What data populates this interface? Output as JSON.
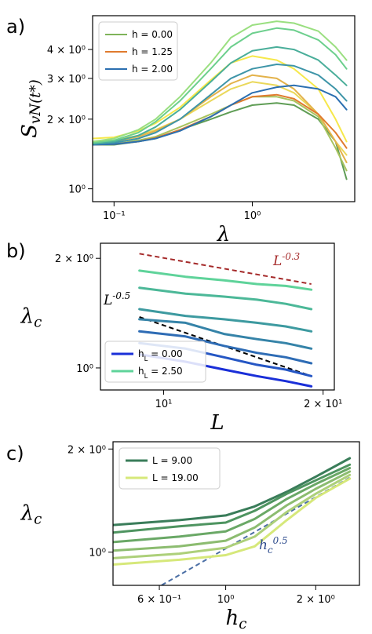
{
  "chart_data": [
    {
      "type": "line",
      "panel_label": "a)",
      "xlabel": "λ",
      "ylabel": "S_vN(t*)",
      "xscale": "log",
      "yscale": "log",
      "xlim": [
        0.07,
        5.5
      ],
      "ylim": [
        0.88,
        5.6
      ],
      "xticks": [
        {
          "value": 0.1,
          "label": "10⁻¹"
        },
        {
          "value": 1,
          "label": "10⁰"
        }
      ],
      "yticks": [
        {
          "value": 1,
          "label": "10⁰"
        },
        {
          "value": 2,
          "label": "2 × 10⁰"
        },
        {
          "value": 3,
          "label": "3 × 10⁰"
        },
        {
          "value": 4,
          "label": "4 × 10⁰"
        }
      ],
      "legend_position": "top-left",
      "legend": [
        {
          "label": "h = 0.00",
          "color": "#7fb35a"
        },
        {
          "label": "h = 1.25",
          "color": "#e07b2e"
        },
        {
          "label": "h = 2.00",
          "color": "#2b6fb0"
        }
      ],
      "x": [
        0.07,
        0.1,
        0.15,
        0.2,
        0.3,
        0.5,
        0.7,
        1.0,
        1.5,
        2.0,
        3.0,
        4.0,
        4.8
      ],
      "series": [
        {
          "color": "#5f9d55",
          "values": [
            1.55,
            1.55,
            1.6,
            1.65,
            1.8,
            2.0,
            2.15,
            2.3,
            2.35,
            2.3,
            2.0,
            1.6,
            1.1
          ]
        },
        {
          "color": "#a8c35e",
          "values": [
            1.55,
            1.56,
            1.62,
            1.68,
            1.85,
            2.1,
            2.3,
            2.5,
            2.5,
            2.4,
            2.05,
            1.5,
            1.2
          ]
        },
        {
          "color": "#ead85a",
          "values": [
            1.6,
            1.62,
            1.7,
            1.8,
            2.0,
            2.4,
            2.7,
            2.9,
            2.8,
            2.6,
            2.1,
            1.6,
            1.4
          ]
        },
        {
          "color": "#f6e84a",
          "values": [
            1.65,
            1.67,
            1.78,
            1.92,
            2.25,
            2.95,
            3.5,
            3.75,
            3.6,
            3.3,
            2.7,
            2.0,
            1.6
          ]
        },
        {
          "color": "#e3b24a",
          "values": [
            1.58,
            1.6,
            1.68,
            1.78,
            2.0,
            2.5,
            2.85,
            3.1,
            3.0,
            2.7,
            2.1,
            1.6,
            1.3
          ]
        },
        {
          "color": "#e07b2e",
          "values": [
            1.55,
            1.56,
            1.6,
            1.66,
            1.8,
            2.05,
            2.3,
            2.5,
            2.55,
            2.45,
            2.1,
            1.75,
            1.5
          ]
        },
        {
          "color": "#2b6fb0",
          "values": [
            1.55,
            1.56,
            1.6,
            1.65,
            1.78,
            2.05,
            2.3,
            2.6,
            2.75,
            2.8,
            2.7,
            2.5,
            2.2
          ]
        },
        {
          "color": "#3e95a8",
          "values": [
            1.56,
            1.58,
            1.65,
            1.75,
            2.0,
            2.55,
            3.0,
            3.3,
            3.45,
            3.4,
            3.1,
            2.7,
            2.4
          ]
        },
        {
          "color": "#4aae9a",
          "values": [
            1.57,
            1.6,
            1.7,
            1.85,
            2.2,
            2.9,
            3.5,
            3.95,
            4.1,
            4.0,
            3.6,
            3.1,
            2.8
          ]
        },
        {
          "color": "#6ccf8d",
          "values": [
            1.58,
            1.62,
            1.75,
            1.95,
            2.4,
            3.3,
            4.1,
            4.7,
            4.95,
            4.85,
            4.4,
            3.8,
            3.3
          ]
        },
        {
          "color": "#9adf80",
          "values": [
            1.6,
            1.65,
            1.8,
            2.0,
            2.5,
            3.5,
            4.5,
            5.1,
            5.3,
            5.2,
            4.8,
            4.1,
            3.6
          ]
        }
      ]
    },
    {
      "type": "line",
      "panel_label": "b)",
      "xlabel": "L",
      "ylabel": "λ_c",
      "xscale": "log",
      "yscale": "log",
      "xlim": [
        7.6,
        21
      ],
      "ylim": [
        0.87,
        2.2
      ],
      "xticks": [
        {
          "value": 10,
          "label": "10¹"
        },
        {
          "value": 20,
          "label": "2 × 10¹"
        }
      ],
      "yticks": [
        {
          "value": 1,
          "label": "10⁰"
        },
        {
          "value": 2,
          "label": "2 × 10⁰"
        }
      ],
      "legend_position": "lower-left",
      "legend": [
        {
          "label": "h_L = 0.00",
          "color": "#1a2fd8"
        },
        {
          "label": "h_L = 2.50",
          "color": "#5fd39a"
        }
      ],
      "annotations": [
        {
          "text": "L^-0.3",
          "color": "#a52a2a"
        },
        {
          "text": "L^-0.5",
          "color": "#000000"
        }
      ],
      "x": [
        9,
        11,
        13,
        15,
        17,
        19
      ],
      "series": [
        {
          "color": "#5fd39a",
          "values": [
            1.85,
            1.78,
            1.74,
            1.7,
            1.68,
            1.64
          ]
        },
        {
          "color": "#4cb898",
          "values": [
            1.66,
            1.6,
            1.57,
            1.54,
            1.5,
            1.45
          ]
        },
        {
          "color": "#3d9aa0",
          "values": [
            1.45,
            1.39,
            1.36,
            1.33,
            1.3,
            1.26
          ]
        },
        {
          "color": "#3583a8",
          "values": [
            1.36,
            1.33,
            1.24,
            1.2,
            1.17,
            1.13
          ]
        },
        {
          "color": "#2e6cb5",
          "values": [
            1.26,
            1.22,
            1.15,
            1.1,
            1.07,
            1.03
          ]
        },
        {
          "color": "#2556c4",
          "values": [
            1.17,
            1.13,
            1.07,
            1.02,
            0.99,
            0.95
          ]
        },
        {
          "color": "#1a2fd8",
          "values": [
            1.09,
            1.04,
            0.99,
            0.95,
            0.92,
            0.89
          ]
        }
      ],
      "guide_lines": [
        {
          "color": "#a52a2a",
          "x": [
            9,
            19
          ],
          "values": [
            2.06,
            1.7
          ]
        },
        {
          "color": "#000000",
          "x": [
            9,
            19
          ],
          "values": [
            1.38,
            0.95
          ]
        }
      ]
    },
    {
      "type": "line",
      "panel_label": "c)",
      "xlabel": "h_c",
      "ylabel": "λ_c",
      "xscale": "log",
      "yscale": "log",
      "xlim": [
        0.42,
        2.8
      ],
      "ylim": [
        0.8,
        2.1
      ],
      "xticks": [
        {
          "value": 0.6,
          "label": "6 × 10⁻¹"
        },
        {
          "value": 1,
          "label": "10⁰"
        },
        {
          "value": 2,
          "label": "2 × 10⁰"
        }
      ],
      "yticks": [
        {
          "value": 1,
          "label": "10⁰"
        },
        {
          "value": 2,
          "label": "2 × 10⁰"
        }
      ],
      "legend_position": "top-left",
      "legend": [
        {
          "label": "L = 9.00",
          "color": "#3a7d5a"
        },
        {
          "label": "L = 19.00",
          "color": "#d6e87a"
        }
      ],
      "annotations": [
        {
          "text": "h_c^0.5",
          "color": "#2c4a8c"
        }
      ],
      "x": [
        0.42,
        0.7,
        1.0,
        1.25,
        1.6,
        2.0,
        2.6
      ],
      "series": [
        {
          "color": "#3a7d5a",
          "values": [
            1.2,
            1.24,
            1.28,
            1.36,
            1.5,
            1.66,
            1.88
          ]
        },
        {
          "color": "#4e9460",
          "values": [
            1.14,
            1.19,
            1.22,
            1.32,
            1.48,
            1.62,
            1.8
          ]
        },
        {
          "color": "#6aa866",
          "values": [
            1.07,
            1.11,
            1.15,
            1.25,
            1.43,
            1.58,
            1.76
          ]
        },
        {
          "color": "#8cbc70",
          "values": [
            1.01,
            1.04,
            1.08,
            1.18,
            1.37,
            1.53,
            1.72
          ]
        },
        {
          "color": "#add07a",
          "values": [
            0.96,
            0.99,
            1.03,
            1.11,
            1.31,
            1.48,
            1.68
          ]
        },
        {
          "color": "#d6e87a",
          "values": [
            0.92,
            0.95,
            0.98,
            1.04,
            1.24,
            1.44,
            1.64
          ]
        }
      ],
      "guide_lines": [
        {
          "color": "#4b6fa5",
          "x": [
            0.55,
            2.6
          ],
          "values": [
            0.76,
            1.65
          ]
        }
      ]
    }
  ]
}
